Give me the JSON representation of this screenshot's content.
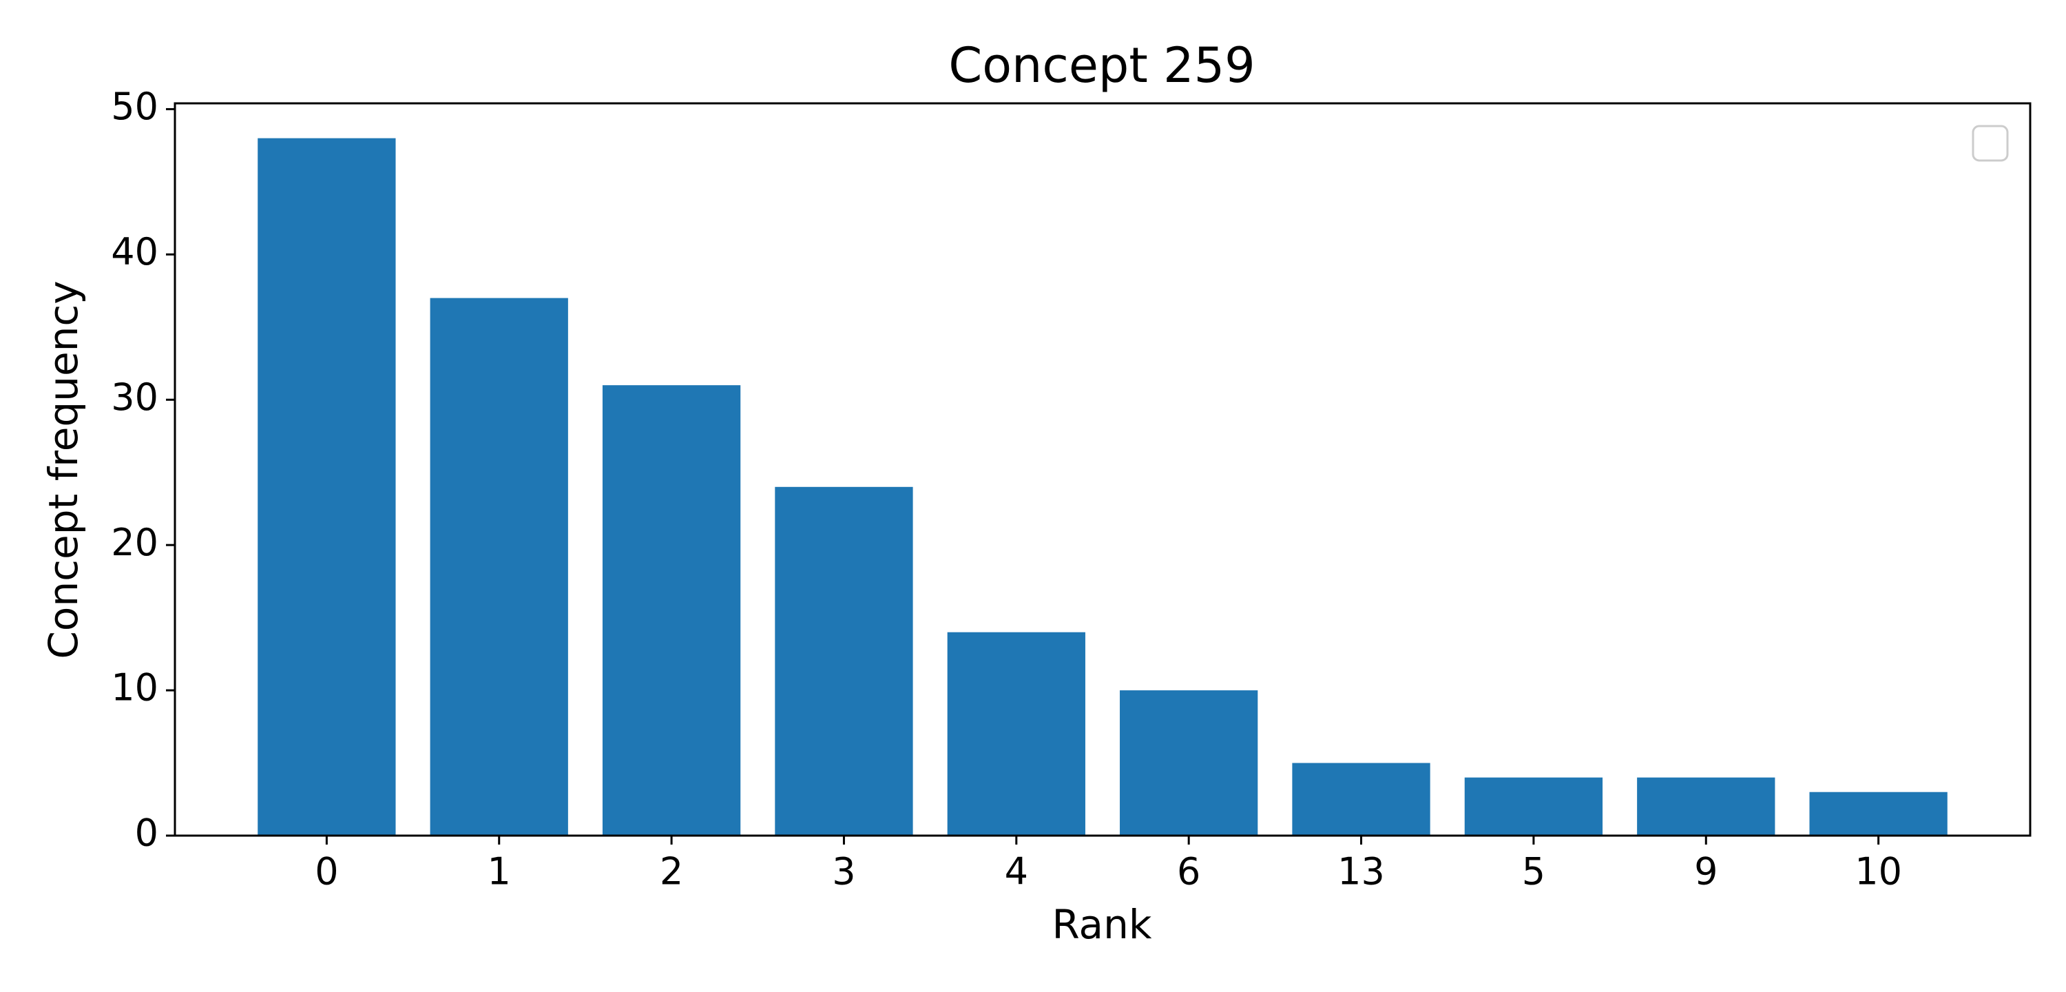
{
  "chart_data": {
    "type": "bar",
    "title": "Concept 259",
    "xlabel": "Rank",
    "ylabel": "Concept frequency",
    "categories": [
      "0",
      "1",
      "2",
      "3",
      "4",
      "6",
      "13",
      "5",
      "9",
      "10"
    ],
    "values": [
      48,
      37,
      31,
      24,
      14,
      10,
      5,
      4,
      4,
      3
    ],
    "color": "#1f77b4",
    "ylim": [
      0,
      50.4
    ],
    "yticks": [
      0,
      10,
      20,
      30,
      40,
      50
    ],
    "grid": false
  }
}
